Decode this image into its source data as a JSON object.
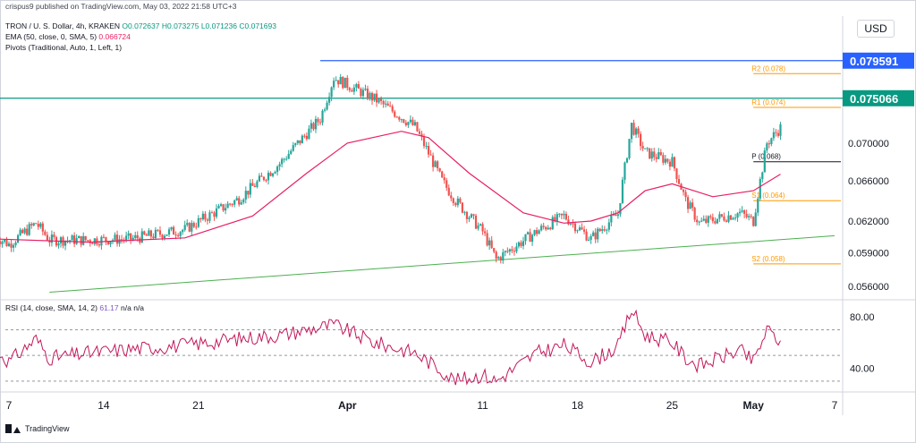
{
  "publisher_line": "crispus9 published on TradingView.com, May 03, 2022 21:58 UTC+3",
  "footer_brand": "TradingView",
  "currency": "USD",
  "legend": {
    "symbol": "TRON / U. S. Dollar, 4h, KRAKEN",
    "open": "O0.072637",
    "high": "H0.073275",
    "low": "L0.071236",
    "close": "C0.071693",
    "ema_label": "EMA (50, close, 0, SMA, 5)",
    "ema_value": "0.066724",
    "pivots_label": "Pivots (Traditional, Auto, 1, Left, 1)",
    "rsi_label": "RSI (14, close, SMA, 14, 2)",
    "rsi_value": "61.17",
    "rsi_na1": "n/a",
    "rsi_na2": "n/a"
  },
  "colors": {
    "up": "#26a69a",
    "down": "#ef5350",
    "ema": "#e91e63",
    "rsi": "#c2185b",
    "blue_line": "#2962ff",
    "teal_line": "#089981",
    "trend": "#4caf50",
    "pivot": "#ff9800",
    "pivot_p": "#131722"
  },
  "chart_data": [
    {
      "type": "candlestick",
      "symbol": "TRON / U. S. Dollar",
      "interval": "4h",
      "y_scale": "log",
      "ylim": [
        0.055,
        0.0825
      ],
      "y_ticks": [
        "0.056000",
        "0.059000",
        "0.062000",
        "0.066000",
        "0.070000"
      ],
      "x_ticks": [
        "7",
        "14",
        "21",
        "Apr",
        "11",
        "18",
        "25",
        "May",
        "7"
      ],
      "x_tick_dates": [
        "2022-03-07",
        "2022-03-14",
        "2022-03-21",
        "2022-04-01",
        "2022-04-11",
        "2022-04-18",
        "2022-04-25",
        "2022-05-01",
        "2022-05-07"
      ],
      "close_path": [
        [
          "2022-03-06",
          0.0605
        ],
        [
          "2022-03-07",
          0.0598
        ],
        [
          "2022-03-09",
          0.0618
        ],
        [
          "2022-03-10",
          0.0602
        ],
        [
          "2022-03-13",
          0.0602
        ],
        [
          "2022-03-16",
          0.0603
        ],
        [
          "2022-03-20",
          0.0612
        ],
        [
          "2022-03-24",
          0.0642
        ],
        [
          "2022-03-27",
          0.0678
        ],
        [
          "2022-03-30",
          0.0727
        ],
        [
          "2022-03-31",
          0.0775
        ],
        [
          "2022-04-03",
          0.075
        ],
        [
          "2022-04-06",
          0.0718
        ],
        [
          "2022-04-08",
          0.066
        ],
        [
          "2022-04-09",
          0.064
        ],
        [
          "2022-04-11",
          0.061
        ],
        [
          "2022-04-12",
          0.0584
        ],
        [
          "2022-04-15",
          0.061
        ],
        [
          "2022-04-17",
          0.0625
        ],
        [
          "2022-04-19",
          0.0603
        ],
        [
          "2022-04-21",
          0.0627
        ],
        [
          "2022-04-22",
          0.072
        ],
        [
          "2022-04-23",
          0.069
        ],
        [
          "2022-04-25",
          0.068
        ],
        [
          "2022-04-26",
          0.064
        ],
        [
          "2022-04-27",
          0.0618
        ],
        [
          "2022-04-30",
          0.0628
        ],
        [
          "2022-05-01",
          0.062
        ],
        [
          "2022-05-02",
          0.07
        ],
        [
          "2022-05-03",
          0.0717
        ]
      ],
      "ema": {
        "label": "EMA (50, close, 0, SMA, 5)",
        "last": 0.066724,
        "path": [
          [
            "2022-03-06",
            0.0603
          ],
          [
            "2022-03-13",
            0.06
          ],
          [
            "2022-03-20",
            0.0604
          ],
          [
            "2022-03-25",
            0.0625
          ],
          [
            "2022-03-29",
            0.0668
          ],
          [
            "2022-04-01",
            0.07
          ],
          [
            "2022-04-05",
            0.0713
          ],
          [
            "2022-04-07",
            0.0706
          ],
          [
            "2022-04-10",
            0.0668
          ],
          [
            "2022-04-14",
            0.0628
          ],
          [
            "2022-04-17",
            0.0618
          ],
          [
            "2022-04-19",
            0.062
          ],
          [
            "2022-04-21",
            0.0628
          ],
          [
            "2022-04-23",
            0.065
          ],
          [
            "2022-04-25",
            0.0657
          ],
          [
            "2022-04-28",
            0.0644
          ],
          [
            "2022-05-01",
            0.065
          ],
          [
            "2022-05-03",
            0.0667
          ]
        ]
      },
      "horizontal_lines": [
        {
          "value": 0.079591,
          "label": "0.079591",
          "color": "#2962ff",
          "from": "2022-03-30"
        },
        {
          "value": 0.075066,
          "label": "0.075066",
          "color": "#089981",
          "from": "2022-03-06"
        }
      ],
      "trendline": {
        "from": [
          "2022-03-10",
          0.0555
        ],
        "to": [
          "2022-05-07",
          0.0606
        ]
      },
      "pivots": [
        {
          "name": "R2 (0.078)",
          "value": 0.078
        },
        {
          "name": "R1 (0.074)",
          "value": 0.074
        },
        {
          "name": "P (0.068)",
          "value": 0.068
        },
        {
          "name": "S1 (0.064)",
          "value": 0.064
        },
        {
          "name": "S2 (0.058)",
          "value": 0.058
        }
      ],
      "pivot_from": "2022-05-01"
    },
    {
      "type": "line",
      "name": "RSI (14, close, SMA, 14, 2)",
      "last": 61.17,
      "ylim": [
        25,
        92
      ],
      "y_ticks": [
        "40.00",
        "80.00"
      ],
      "bands": [
        70,
        50,
        30
      ],
      "path": [
        [
          "2022-03-06",
          55
        ],
        [
          "2022-03-07",
          45
        ],
        [
          "2022-03-09",
          63
        ],
        [
          "2022-03-10",
          48
        ],
        [
          "2022-03-13",
          52
        ],
        [
          "2022-03-16",
          55
        ],
        [
          "2022-03-20",
          58
        ],
        [
          "2022-03-24",
          63
        ],
        [
          "2022-03-27",
          66
        ],
        [
          "2022-03-30",
          72
        ],
        [
          "2022-03-31",
          74
        ],
        [
          "2022-04-03",
          60
        ],
        [
          "2022-04-06",
          52
        ],
        [
          "2022-04-08",
          38
        ],
        [
          "2022-04-09",
          30
        ],
        [
          "2022-04-11",
          35
        ],
        [
          "2022-04-12",
          30
        ],
        [
          "2022-04-15",
          52
        ],
        [
          "2022-04-17",
          58
        ],
        [
          "2022-04-19",
          45
        ],
        [
          "2022-04-21",
          57
        ],
        [
          "2022-04-22",
          86
        ],
        [
          "2022-04-23",
          66
        ],
        [
          "2022-04-25",
          60
        ],
        [
          "2022-04-26",
          48
        ],
        [
          "2022-04-27",
          42
        ],
        [
          "2022-04-30",
          54
        ],
        [
          "2022-05-01",
          45
        ],
        [
          "2022-05-02",
          70
        ],
        [
          "2022-05-03",
          61
        ]
      ]
    }
  ]
}
